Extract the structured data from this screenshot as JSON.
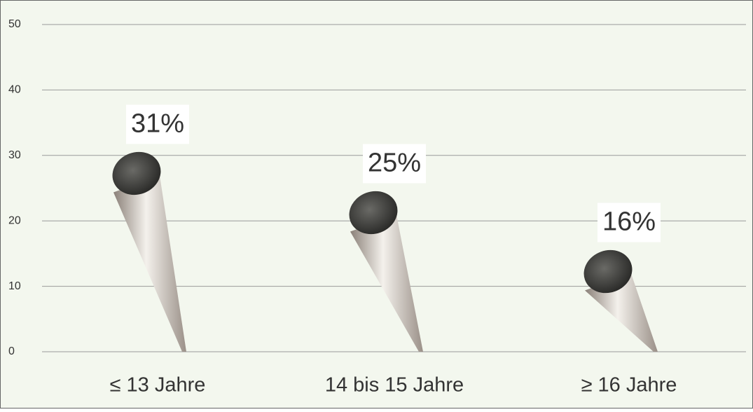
{
  "chart_data": {
    "type": "cigarette",
    "categories": [
      "≤ 13 Jahre",
      "14 bis 15 Jahre",
      "≥ 16 Jahre"
    ],
    "values": [
      31,
      25,
      16
    ],
    "value_labels": [
      "31%",
      "25%",
      "16%"
    ],
    "ylim": [
      0,
      50
    ],
    "yticks": [
      0,
      10,
      20,
      30,
      40,
      50
    ],
    "grid": true
  }
}
